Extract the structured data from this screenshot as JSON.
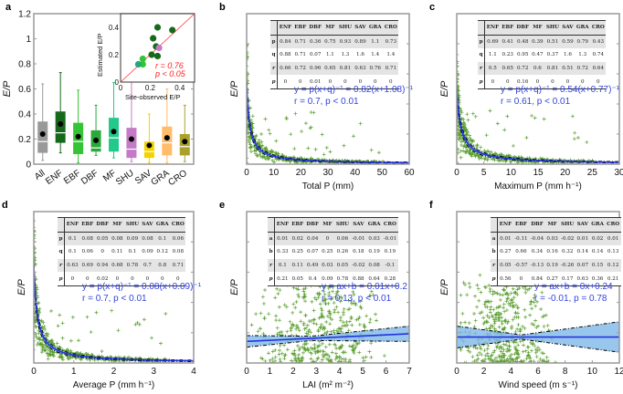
{
  "panel_labels": [
    "a",
    "b",
    "c",
    "d",
    "e",
    "f"
  ],
  "chart_data": [
    {
      "id": "a",
      "type": "box",
      "ylabel": "E/P",
      "ylim": [
        0,
        1.2
      ],
      "yticks": [
        "0",
        "0.2",
        "0.4",
        "0.6",
        "0.8",
        "1",
        "1.2"
      ],
      "categories": [
        "All",
        "ENF",
        "EBF",
        "DBF",
        "MF",
        "SHU",
        "SAV",
        "GRA",
        "CRO"
      ],
      "colors": [
        "#999999",
        "#16691a",
        "#35c435",
        "#2aa83a",
        "#22c98a",
        "#c57ac8",
        "#f2d300",
        "#ffbc6a",
        "#a9a12a"
      ],
      "boxes": [
        [
          0.03,
          0.09,
          0.18,
          0.34,
          0.64,
          0.24
        ],
        [
          0.09,
          0.17,
          0.25,
          0.42,
          0.73,
          0.32
        ],
        [
          0.01,
          0.08,
          0.18,
          0.33,
          0.59,
          0.22
        ],
        [
          0.07,
          0.1,
          0.13,
          0.27,
          0.47,
          0.19
        ],
        [
          0.05,
          0.1,
          0.21,
          0.37,
          0.65,
          0.26
        ],
        [
          0.02,
          0.05,
          0.12,
          0.29,
          0.67,
          0.2
        ],
        [
          0.01,
          0.05,
          0.1,
          0.18,
          0.4,
          0.15
        ],
        [
          0.01,
          0.07,
          0.17,
          0.3,
          0.6,
          0.21
        ],
        [
          0.02,
          0.07,
          0.14,
          0.24,
          0.47,
          0.18
        ]
      ],
      "box_fields": [
        "min",
        "q1",
        "median",
        "q3",
        "max",
        "mean"
      ],
      "inset": {
        "type": "scatter",
        "xlabel": "Site-observed E/P",
        "ylabel": "Estimated E/P",
        "xlim": [
          0,
          0.5
        ],
        "ylim": [
          0,
          0.5
        ],
        "xticks": [
          "0",
          "0.2",
          "0.4"
        ],
        "yticks": [
          "0",
          "0.2",
          "0.4"
        ],
        "points": [
          [
            0.25,
            0.4,
            "#16691a"
          ],
          [
            0.35,
            0.38,
            "#16691a"
          ],
          [
            0.22,
            0.32,
            "#16691a"
          ],
          [
            0.24,
            0.26,
            "#16691a"
          ],
          [
            0.21,
            0.2,
            "#16691a"
          ],
          [
            0.25,
            0.19,
            "#16691a"
          ],
          [
            0.26,
            0.25,
            "#c57ac8"
          ],
          [
            0.15,
            0.17,
            "#35c435"
          ],
          [
            0.15,
            0.13,
            "#35c435"
          ],
          [
            0.12,
            0.13,
            "#22a87a"
          ]
        ],
        "r_text": "r = 0.76",
        "p_text": "p < 0.05"
      }
    },
    {
      "id": "b",
      "type": "scatter+curve",
      "xlabel": "Total P (mm)",
      "ylabel": "E/P",
      "xlim": [
        0,
        60
      ],
      "ylim": [
        0,
        1.4
      ],
      "xticks": [
        "0",
        "10",
        "20",
        "30",
        "40",
        "50",
        "60"
      ],
      "model": "power",
      "p": 0.82,
      "q": 1.08,
      "equation": "y = p(x+q)⁻¹ = 0.82(x+1.08)⁻¹",
      "stats": "r = 0.7, p < 0.01",
      "table": {
        "header": [
          "",
          "ENF",
          "EBF",
          "DBF",
          "MF",
          "SHU",
          "SAV",
          "GRA",
          "CRO"
        ],
        "rows": [
          [
            "p",
            "0.84",
            "0.71",
            "0.36",
            "0.75",
            "0.93",
            "0.89",
            "1.1",
            "0.73"
          ],
          [
            "q",
            "0.88",
            "0.71",
            "0.07",
            "1.1",
            "1.3",
            "1.6",
            "1.4",
            "1.4"
          ],
          [
            "r",
            "0.66",
            "0.72",
            "0.96",
            "0.65",
            "0.81",
            "0.63",
            "0.76",
            "0.71"
          ],
          [
            "p",
            "0",
            "0",
            "0.01",
            "0",
            "0",
            "0",
            "0",
            "0"
          ]
        ]
      }
    },
    {
      "id": "c",
      "type": "scatter+curve",
      "xlabel": "Maximum P (mm h⁻¹)",
      "ylabel": "E/P",
      "xlim": [
        0,
        30
      ],
      "ylim": [
        0,
        1.4
      ],
      "xticks": [
        "0",
        "5",
        "10",
        "15",
        "20",
        "25",
        "30"
      ],
      "model": "power",
      "p": 0.54,
      "q": 0.77,
      "equation": "y = p(x+q)⁻¹ = 0.54(x+0.77)⁻¹",
      "stats": "r = 0.61, p < 0.01",
      "table": {
        "header": [
          "",
          "ENF",
          "EBF",
          "DBF",
          "MF",
          "SHU",
          "SAV",
          "GRA",
          "CRO"
        ],
        "rows": [
          [
            "p",
            "0.69",
            "0.41",
            "0.48",
            "0.39",
            "0.51",
            "0.59",
            "0.79",
            "0.43"
          ],
          [
            "q",
            "1.1",
            "0.23",
            "0.95",
            "0.47",
            "0.37",
            "1.6",
            "1.3",
            "0.74"
          ],
          [
            "r",
            "0.5",
            "0.65",
            "0.72",
            "0.6",
            "0.81",
            "0.51",
            "0.72",
            "0.64"
          ],
          [
            "p",
            "0",
            "0",
            "0.16",
            "0",
            "0",
            "0",
            "0",
            "0"
          ]
        ]
      }
    },
    {
      "id": "d",
      "type": "scatter+curve",
      "xlabel": "Average P (mm h⁻¹)",
      "ylabel": "E/P",
      "xlim": [
        0,
        4
      ],
      "ylim": [
        0,
        1.4
      ],
      "xticks": [
        "0",
        "1",
        "2",
        "3",
        "4"
      ],
      "model": "power",
      "p": 0.08,
      "q": 0.09,
      "equation": "y = p(x+q)⁻¹ = 0.08(x+0.09)⁻¹",
      "stats": "r = 0.7, p < 0.01",
      "table": {
        "header": [
          "",
          "ENF",
          "EBF",
          "DBF",
          "MF",
          "SHU",
          "SAV",
          "GRA",
          "CRO"
        ],
        "rows": [
          [
            "p",
            "0.1",
            "0.08",
            "0.05",
            "0.08",
            "0.09",
            "0.08",
            "0.1",
            "0.06"
          ],
          [
            "q",
            "0.1",
            "0.06",
            "0",
            "0.11",
            "0.1",
            "0.09",
            "0.12",
            "0.08"
          ],
          [
            "r",
            "0.63",
            "0.69",
            "0.94",
            "0.68",
            "0.78",
            "0.7",
            "0.8",
            "0.71"
          ],
          [
            "p",
            "0",
            "0",
            "0.02",
            "0",
            "0",
            "0",
            "0",
            "0"
          ]
        ]
      }
    },
    {
      "id": "e",
      "type": "scatter+line",
      "xlabel": "LAI (m² m⁻²)",
      "ylabel": "E/P",
      "xlim": [
        0,
        7
      ],
      "ylim": [
        0,
        1.4
      ],
      "xticks": [
        "0",
        "1",
        "2",
        "3",
        "4",
        "5",
        "6",
        "7"
      ],
      "model": "linear",
      "a": 0.01,
      "b": 0.2,
      "equation": "y = ax+b = 0.01x+0.2",
      "stats": "r = 0.13, p < 0.01",
      "table": {
        "header": [
          "",
          "ENF",
          "EBF",
          "DBF",
          "MF",
          "SHU",
          "SAV",
          "GRA",
          "CRO"
        ],
        "rows": [
          [
            "a",
            "0.01",
            "0.02",
            "0.04",
            "0",
            "0.06",
            "-0.01",
            "0.03",
            "-0.01"
          ],
          [
            "b",
            "0.33",
            "0.25",
            "0.07",
            "0.25",
            "0.26",
            "0.18",
            "0.19",
            "0.19"
          ],
          [
            "r",
            "0.1",
            "0.11",
            "0.49",
            "0.03",
            "0.05",
            "-0.02",
            "0.08",
            "-0.1"
          ],
          [
            "p",
            "0.21",
            "0.05",
            "0.4",
            "0.09",
            "0.78",
            "0.88",
            "0.64",
            "0.28"
          ]
        ]
      }
    },
    {
      "id": "f",
      "type": "scatter+line",
      "xlabel": "Wind speed (m s⁻¹)",
      "ylabel": "E/P",
      "xlim": [
        0,
        12
      ],
      "ylim": [
        0,
        1.4
      ],
      "xticks": [
        "0",
        "2",
        "4",
        "6",
        "8",
        "10",
        "12"
      ],
      "model": "linear",
      "a": 0,
      "b": 0.24,
      "equation": "y = ax+b = 0x+0.24",
      "stats": "r = -0.01, p = 0.78",
      "table": {
        "header": [
          "",
          "ENF",
          "EBF",
          "DBF",
          "MF",
          "SHU",
          "SAV",
          "GRA",
          "CRO"
        ],
        "rows": [
          [
            "a",
            "0.01",
            "-0.11",
            "-0.04",
            "0.03",
            "-0.02",
            "0.01",
            "0.02",
            "0.01"
          ],
          [
            "b",
            "0.27",
            "0.66",
            "0.34",
            "0.16",
            "0.32",
            "0.14",
            "0.14",
            "0.13"
          ],
          [
            "r",
            "0.05",
            "-0.57",
            "-0.13",
            "0.19",
            "-0.26",
            "0.07",
            "0.15",
            "0.12"
          ],
          [
            "p",
            "0.56",
            "0",
            "0.84",
            "0.27",
            "0.17",
            "0.63",
            "0.36",
            "0.21"
          ]
        ]
      }
    }
  ],
  "colors": {
    "scatter": "#5a9e2f",
    "fit": "#2233dd",
    "ci_fill": "#7fb8e8",
    "ci_bound": "#000000",
    "inset_line": "#ff3333",
    "stats_red": "#ff2222"
  }
}
